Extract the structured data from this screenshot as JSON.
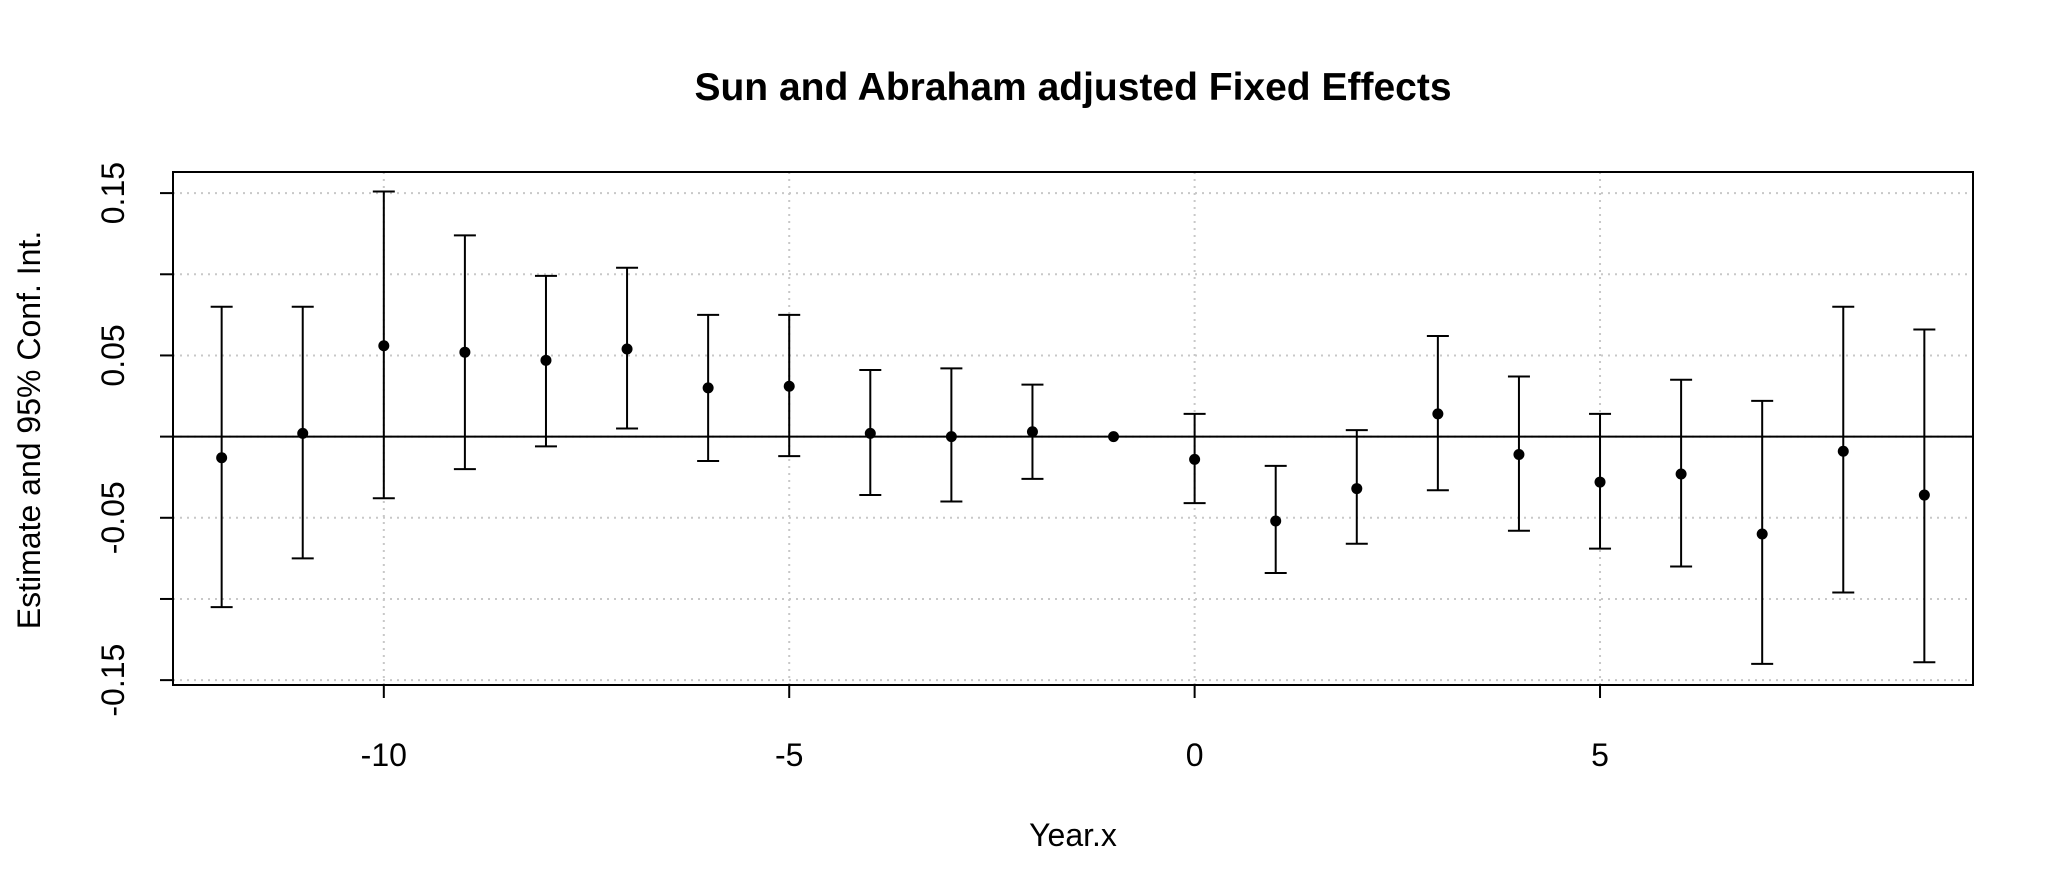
{
  "chart_data": {
    "type": "scatter",
    "title": "Sun and Abraham adjusted Fixed Effects",
    "xlabel": "Year.x",
    "ylabel": "Estimate and 95% Conf. Int.",
    "xlim": [
      -12.6,
      9.6
    ],
    "ylim": [
      -0.153,
      0.163
    ],
    "grid": true,
    "reference_line_y": 0,
    "x_ticks": [
      -10,
      -5,
      0,
      5
    ],
    "x_tick_labels": [
      "-10",
      "-5",
      "0",
      "5"
    ],
    "y_ticks": [
      -0.15,
      -0.1,
      -0.05,
      0,
      0.05,
      0.1,
      0.15
    ],
    "y_tick_labels": [
      "-0.15",
      "",
      "-0.05",
      "",
      "0.05",
      "",
      "0.15"
    ],
    "series": [
      {
        "x": [
          -12,
          -11,
          -10,
          -9,
          -8,
          -7,
          -6,
          -5,
          -4,
          -3,
          -2,
          -1,
          0,
          1,
          2,
          3,
          4,
          5,
          6,
          7,
          8,
          9
        ],
        "y": [
          -0.013,
          0.002,
          0.056,
          0.052,
          0.047,
          0.054,
          0.03,
          0.031,
          0.002,
          0.0,
          0.003,
          0.0,
          -0.014,
          -0.052,
          -0.032,
          0.014,
          -0.011,
          -0.028,
          -0.023,
          -0.06,
          -0.009,
          -0.036
        ],
        "lower": [
          -0.105,
          -0.075,
          -0.038,
          -0.02,
          -0.006,
          0.005,
          -0.015,
          -0.012,
          -0.036,
          -0.04,
          -0.026,
          0.0,
          -0.041,
          -0.084,
          -0.066,
          -0.033,
          -0.058,
          -0.069,
          -0.08,
          -0.14,
          -0.096,
          -0.139
        ],
        "upper": [
          0.08,
          0.08,
          0.151,
          0.124,
          0.099,
          0.104,
          0.075,
          0.075,
          0.041,
          0.042,
          0.032,
          0.0,
          0.014,
          -0.018,
          0.004,
          0.062,
          0.037,
          0.014,
          0.035,
          0.022,
          0.08,
          0.066
        ]
      }
    ]
  }
}
